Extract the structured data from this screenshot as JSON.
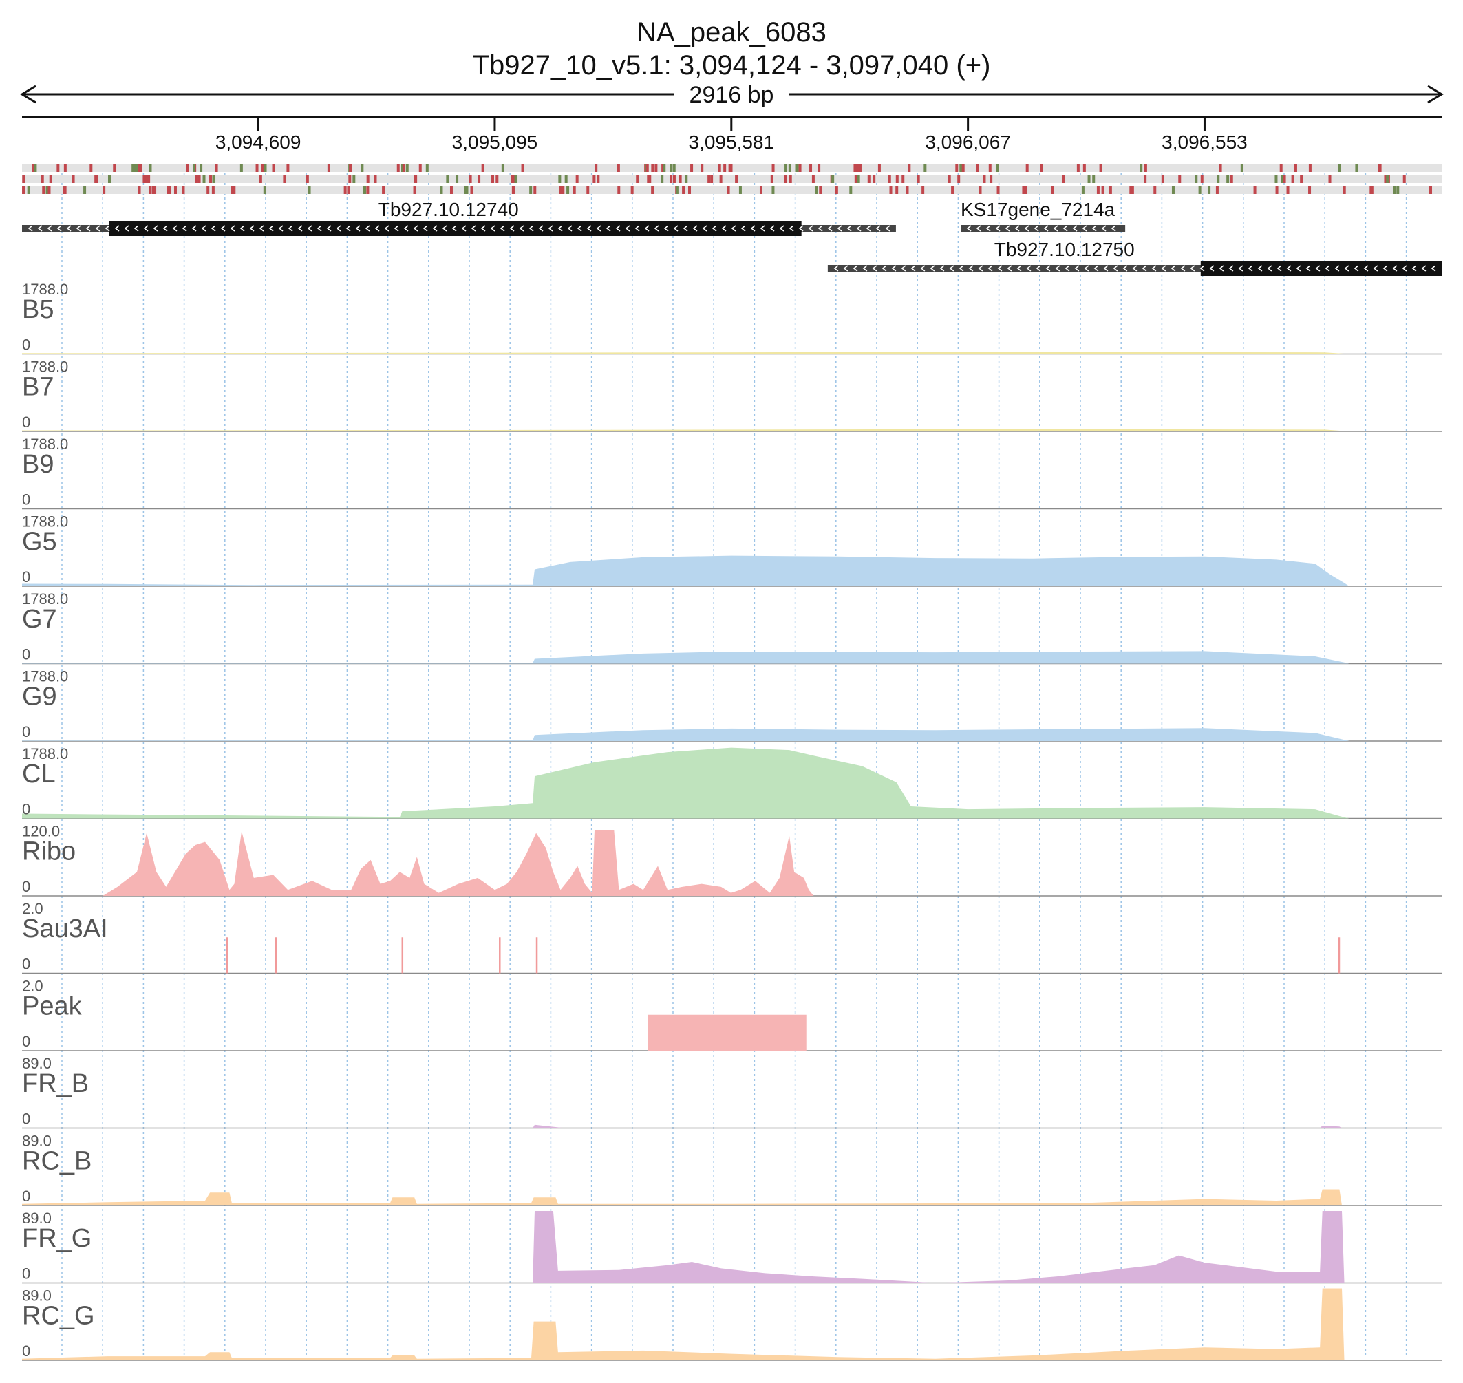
{
  "title": "NA_peak_6083",
  "subtitle": "Tb927_10_v5.1: 3,094,124 - 3,097,040 (+)",
  "span_label": "2916 bp",
  "region": {
    "start": 3094124,
    "end": 3097040
  },
  "ticks": [
    {
      "pos": 3094609,
      "label": "3,094,609"
    },
    {
      "pos": 3095095,
      "label": "3,095,095"
    },
    {
      "pos": 3095581,
      "label": "3,095,581"
    },
    {
      "pos": 3096067,
      "label": "3,096,067"
    },
    {
      "pos": 3096553,
      "label": "3,096,553"
    }
  ],
  "genes": [
    {
      "name": "Tb927.10.12740",
      "start": 3094124,
      "end": 3095919,
      "cds_start": 3094303,
      "cds_end": 3095725,
      "row": 0,
      "strand": "-"
    },
    {
      "name": "KS17gene_7214a",
      "start": 3096052,
      "end": 3096390,
      "row": 0,
      "strand": "-"
    },
    {
      "name": "Tb927.10.12750",
      "start": 3095779,
      "end": 3097040,
      "cds_start": 3096545,
      "cds_end": 3097040,
      "row": 1,
      "strand": "-"
    }
  ],
  "chart_data": {
    "type": "area",
    "x_range": [
      3094124,
      3097040
    ],
    "tracks": [
      {
        "name": "B5",
        "max_label": "1788.0",
        "min_label": "0",
        "ymax": 1788,
        "color": "#f0e6a0",
        "style": "area",
        "points": [
          [
            3094124,
            20
          ],
          [
            3095095,
            30
          ],
          [
            3095800,
            45
          ],
          [
            3096200,
            50
          ],
          [
            3096800,
            40
          ],
          [
            3096850,
            0
          ]
        ]
      },
      {
        "name": "B7",
        "max_label": "1788.0",
        "min_label": "0",
        "ymax": 1788,
        "color": "#f0e6a0",
        "style": "area",
        "points": [
          [
            3094124,
            25
          ],
          [
            3095095,
            35
          ],
          [
            3095800,
            50
          ],
          [
            3096300,
            55
          ],
          [
            3096800,
            45
          ],
          [
            3096850,
            0
          ]
        ]
      },
      {
        "name": "B9",
        "max_label": "1788.0",
        "min_label": "0",
        "ymax": 1788,
        "color": "#f0e6a0",
        "style": "area",
        "points": []
      },
      {
        "name": "G5",
        "max_label": "1788.0",
        "min_label": "0",
        "ymax": 1788,
        "color": "#b8d6ee",
        "style": "area",
        "points": [
          [
            3094124,
            60
          ],
          [
            3094300,
            55
          ],
          [
            3094600,
            30
          ],
          [
            3095173,
            40
          ],
          [
            3095177,
            420
          ],
          [
            3095250,
            600
          ],
          [
            3095400,
            720
          ],
          [
            3095581,
            760
          ],
          [
            3095800,
            740
          ],
          [
            3096000,
            700
          ],
          [
            3096200,
            690
          ],
          [
            3096400,
            730
          ],
          [
            3096553,
            740
          ],
          [
            3096700,
            660
          ],
          [
            3096780,
            560
          ],
          [
            3096810,
            300
          ],
          [
            3096840,
            80
          ],
          [
            3096850,
            0
          ]
        ]
      },
      {
        "name": "G7",
        "max_label": "1788.0",
        "min_label": "0",
        "ymax": 1788,
        "color": "#b8d6ee",
        "style": "area",
        "points": [
          [
            3094124,
            10
          ],
          [
            3095173,
            15
          ],
          [
            3095177,
            120
          ],
          [
            3095400,
            250
          ],
          [
            3095581,
            300
          ],
          [
            3095800,
            290
          ],
          [
            3096000,
            280
          ],
          [
            3096300,
            300
          ],
          [
            3096553,
            310
          ],
          [
            3096780,
            180
          ],
          [
            3096840,
            30
          ],
          [
            3096850,
            0
          ]
        ]
      },
      {
        "name": "G9",
        "max_label": "1788.0",
        "min_label": "0",
        "ymax": 1788,
        "color": "#b8d6ee",
        "style": "area",
        "points": [
          [
            3094124,
            10
          ],
          [
            3095173,
            15
          ],
          [
            3095177,
            150
          ],
          [
            3095400,
            270
          ],
          [
            3095581,
            310
          ],
          [
            3095800,
            280
          ],
          [
            3096000,
            270
          ],
          [
            3096300,
            300
          ],
          [
            3096553,
            320
          ],
          [
            3096780,
            200
          ],
          [
            3096840,
            30
          ],
          [
            3096850,
            0
          ]
        ]
      },
      {
        "name": "CL",
        "max_label": "1788.0",
        "min_label": "0",
        "ymax": 1788,
        "color": "#bfe3bd",
        "style": "area",
        "points": [
          [
            3094124,
            120
          ],
          [
            3094500,
            80
          ],
          [
            3094900,
            40
          ],
          [
            3094905,
            180
          ],
          [
            3095095,
            300
          ],
          [
            3095173,
            380
          ],
          [
            3095177,
            1050
          ],
          [
            3095300,
            1400
          ],
          [
            3095450,
            1650
          ],
          [
            3095581,
            1760
          ],
          [
            3095700,
            1700
          ],
          [
            3095750,
            1560
          ],
          [
            3095850,
            1300
          ],
          [
            3095920,
            900
          ],
          [
            3095950,
            300
          ],
          [
            3096067,
            230
          ],
          [
            3096300,
            260
          ],
          [
            3096553,
            280
          ],
          [
            3096780,
            230
          ],
          [
            3096830,
            60
          ],
          [
            3096850,
            0
          ]
        ]
      },
      {
        "name": "Ribo",
        "max_label": "120.0",
        "min_label": "0",
        "ymax": 120,
        "color": "#f6b4b4",
        "style": "area",
        "points": [
          [
            3094124,
            0
          ],
          [
            3094290,
            0
          ],
          [
            3094320,
            15
          ],
          [
            3094360,
            40
          ],
          [
            3094380,
            105
          ],
          [
            3094400,
            40
          ],
          [
            3094420,
            15
          ],
          [
            3094460,
            70
          ],
          [
            3094480,
            85
          ],
          [
            3094500,
            90
          ],
          [
            3094530,
            60
          ],
          [
            3094550,
            10
          ],
          [
            3094560,
            20
          ],
          [
            3094575,
            108
          ],
          [
            3094600,
            30
          ],
          [
            3094640,
            35
          ],
          [
            3094670,
            10
          ],
          [
            3094720,
            25
          ],
          [
            3094760,
            10
          ],
          [
            3094800,
            10
          ],
          [
            3094820,
            45
          ],
          [
            3094840,
            60
          ],
          [
            3094860,
            20
          ],
          [
            3094880,
            25
          ],
          [
            3094900,
            40
          ],
          [
            3094920,
            30
          ],
          [
            3094935,
            65
          ],
          [
            3094950,
            20
          ],
          [
            3094980,
            5
          ],
          [
            3095020,
            20
          ],
          [
            3095060,
            30
          ],
          [
            3095095,
            10
          ],
          [
            3095120,
            20
          ],
          [
            3095140,
            40
          ],
          [
            3095160,
            70
          ],
          [
            3095180,
            105
          ],
          [
            3095200,
            80
          ],
          [
            3095215,
            40
          ],
          [
            3095230,
            10
          ],
          [
            3095250,
            30
          ],
          [
            3095265,
            50
          ],
          [
            3095280,
            20
          ],
          [
            3095295,
            5
          ],
          [
            3095300,
            110
          ],
          [
            3095340,
            110
          ],
          [
            3095350,
            10
          ],
          [
            3095380,
            20
          ],
          [
            3095400,
            10
          ],
          [
            3095430,
            50
          ],
          [
            3095450,
            10
          ],
          [
            3095480,
            15
          ],
          [
            3095520,
            20
          ],
          [
            3095560,
            15
          ],
          [
            3095580,
            5
          ],
          [
            3095600,
            10
          ],
          [
            3095630,
            25
          ],
          [
            3095660,
            5
          ],
          [
            3095680,
            30
          ],
          [
            3095700,
            100
          ],
          [
            3095710,
            40
          ],
          [
            3095730,
            30
          ],
          [
            3095740,
            10
          ],
          [
            3095750,
            0
          ],
          [
            3097040,
            0
          ]
        ]
      },
      {
        "name": "Sau3AI",
        "max_label": "2.0",
        "min_label": "0",
        "ymax": 2,
        "color": "#f6b4b4",
        "style": "bars",
        "points": [
          [
            3094545,
            1
          ],
          [
            3094645,
            1
          ],
          [
            3094905,
            1
          ],
          [
            3095105,
            1
          ],
          [
            3095181,
            1
          ],
          [
            3096829,
            1
          ]
        ]
      },
      {
        "name": "Peak",
        "max_label": "2.0",
        "min_label": "0",
        "ymax": 2,
        "color": "#f6b4b4",
        "style": "rect",
        "points": [
          [
            3095410,
            1
          ],
          [
            3095735,
            1
          ]
        ]
      },
      {
        "name": "FR_B",
        "max_label": "89.0",
        "min_label": "0",
        "ymax": 89,
        "color": "#d9b3db",
        "style": "area",
        "points": [
          [
            3094124,
            0
          ],
          [
            3095173,
            0
          ],
          [
            3095177,
            4
          ],
          [
            3095210,
            2
          ],
          [
            3095240,
            0
          ],
          [
            3096790,
            0
          ],
          [
            3096795,
            3
          ],
          [
            3096830,
            2
          ],
          [
            3096835,
            0
          ]
        ]
      },
      {
        "name": "RC_B",
        "max_label": "89.0",
        "min_label": "0",
        "ymax": 89,
        "color": "#fcd4a4",
        "style": "area",
        "points": [
          [
            3094124,
            2
          ],
          [
            3094300,
            4
          ],
          [
            3094500,
            6
          ],
          [
            3094510,
            16
          ],
          [
            3094550,
            16
          ],
          [
            3094555,
            3
          ],
          [
            3094880,
            3
          ],
          [
            3094885,
            10
          ],
          [
            3094930,
            10
          ],
          [
            3094935,
            2
          ],
          [
            3095170,
            3
          ],
          [
            3095175,
            10
          ],
          [
            3095220,
            10
          ],
          [
            3095225,
            2
          ],
          [
            3095581,
            2
          ],
          [
            3096300,
            3
          ],
          [
            3096553,
            8
          ],
          [
            3096700,
            6
          ],
          [
            3096790,
            8
          ],
          [
            3096795,
            20
          ],
          [
            3096830,
            20
          ],
          [
            3096835,
            0
          ],
          [
            3097040,
            0
          ]
        ]
      },
      {
        "name": "FR_G",
        "max_label": "89.0",
        "min_label": "0",
        "ymax": 89,
        "color": "#d9b3db",
        "style": "area",
        "points": [
          [
            3094124,
            0
          ],
          [
            3095173,
            0
          ],
          [
            3095177,
            89
          ],
          [
            3095215,
            89
          ],
          [
            3095225,
            15
          ],
          [
            3095350,
            16
          ],
          [
            3095450,
            22
          ],
          [
            3095500,
            26
          ],
          [
            3095560,
            18
          ],
          [
            3095650,
            12
          ],
          [
            3095750,
            8
          ],
          [
            3095850,
            5
          ],
          [
            3096000,
            0
          ],
          [
            3096150,
            3
          ],
          [
            3096250,
            8
          ],
          [
            3096350,
            15
          ],
          [
            3096450,
            22
          ],
          [
            3096500,
            34
          ],
          [
            3096553,
            25
          ],
          [
            3096700,
            14
          ],
          [
            3096790,
            14
          ],
          [
            3096795,
            89
          ],
          [
            3096835,
            89
          ],
          [
            3096840,
            0
          ],
          [
            3097040,
            0
          ]
        ]
      },
      {
        "name": "RC_G",
        "max_label": "89.0",
        "min_label": "0",
        "ymax": 89,
        "color": "#fcd4a4",
        "style": "area",
        "points": [
          [
            3094124,
            2
          ],
          [
            3094300,
            5
          ],
          [
            3094500,
            5
          ],
          [
            3094510,
            10
          ],
          [
            3094550,
            10
          ],
          [
            3094555,
            3
          ],
          [
            3094880,
            3
          ],
          [
            3094885,
            6
          ],
          [
            3094930,
            6
          ],
          [
            3094935,
            2
          ],
          [
            3095170,
            3
          ],
          [
            3095175,
            48
          ],
          [
            3095220,
            48
          ],
          [
            3095225,
            10
          ],
          [
            3095400,
            12
          ],
          [
            3095581,
            8
          ],
          [
            3095800,
            4
          ],
          [
            3096000,
            2
          ],
          [
            3096200,
            6
          ],
          [
            3096400,
            12
          ],
          [
            3096553,
            16
          ],
          [
            3096700,
            14
          ],
          [
            3096790,
            16
          ],
          [
            3096795,
            89
          ],
          [
            3096835,
            89
          ],
          [
            3096840,
            0
          ],
          [
            3097040,
            0
          ]
        ]
      }
    ]
  }
}
